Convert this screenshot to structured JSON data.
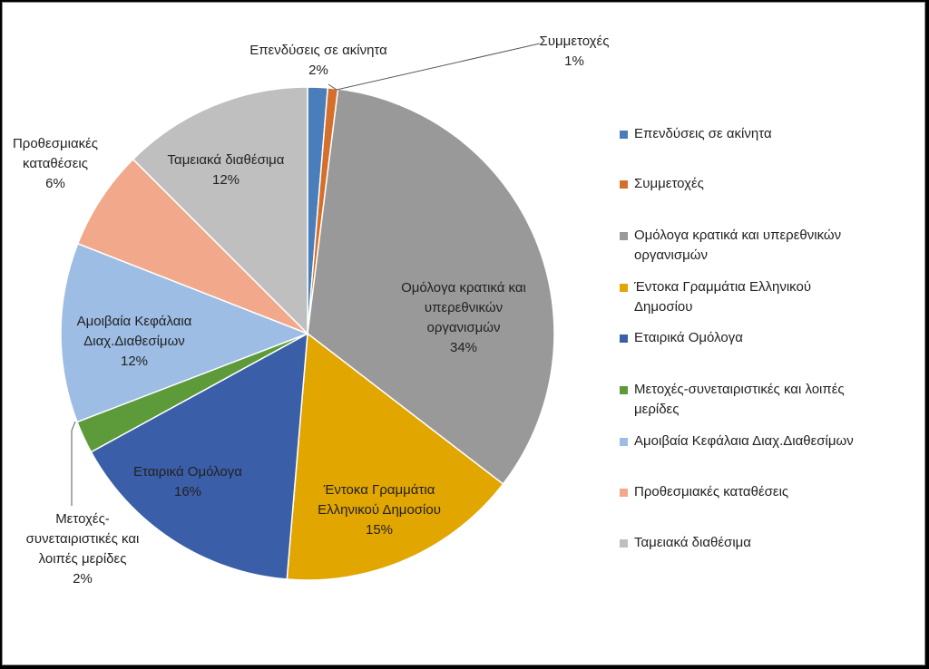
{
  "chart_data": {
    "type": "pie",
    "legend_position": "right",
    "slices": [
      {
        "name": "Επενδύσεις σε ακίνητα",
        "value": 2,
        "label": "2%",
        "color": "#4a7ebb"
      },
      {
        "name": "Συμμετοχές",
        "value": 1,
        "label": "1%",
        "color": "#d4702b"
      },
      {
        "name": "Ομόλογα κρατικά και υπερεθνικών οργανισμών",
        "value": 34,
        "label": "34%",
        "color": "#999999"
      },
      {
        "name": "Έντοκα Γραμμάτια Ελληνικού Δημοσίου",
        "value": 15,
        "label": "15%",
        "color": "#e2a600"
      },
      {
        "name": "Εταιρικά Ομόλογα",
        "value": 16,
        "label": "16%",
        "color": "#3a5ea8"
      },
      {
        "name": "Μετοχές-συνεταιριστικές και λοιπές μερίδες",
        "value": 2,
        "label": "2%",
        "color": "#5d9a3a"
      },
      {
        "name": "Αμοιβαία Κεφάλαια Διαχ.Διαθεσίμων",
        "value": 12,
        "label": "12%",
        "color": "#9dbde4"
      },
      {
        "name": "Προθεσμιακές καταθέσεις",
        "value": 6,
        "label": "6%",
        "color": "#f2a98b"
      },
      {
        "name": "Ταμειακά διαθέσιμα",
        "value": 12,
        "label": "12%",
        "color": "#bfbfbf"
      }
    ],
    "data_labels": [
      {
        "lines": [
          "Επενδύσεις σε ακίνητα"
        ],
        "pct": "2%"
      },
      {
        "lines": [
          "Συμμετοχές"
        ],
        "pct": "1%"
      },
      {
        "lines": [
          "Ομόλογα κρατικά και",
          "υπερεθνικών",
          "οργανισμών"
        ],
        "pct": "34%"
      },
      {
        "lines": [
          "Έντοκα Γραμμάτια",
          "Ελληνικού Δημοσίου"
        ],
        "pct": "15%"
      },
      {
        "lines": [
          "Εταιρικά Ομόλογα"
        ],
        "pct": "16%"
      },
      {
        "lines": [
          "Μετοχές-",
          "συνεταιριστικές και",
          "λοιπές μερίδες"
        ],
        "pct": "2%"
      },
      {
        "lines": [
          "Αμοιβαία Κεφάλαια",
          "Διαχ.Διαθεσίμων"
        ],
        "pct": "12%"
      },
      {
        "lines": [
          "Προθεσμιακές",
          "καταθέσεις"
        ],
        "pct": "6%"
      },
      {
        "lines": [
          "Ταμειακά διαθέσιμα"
        ],
        "pct": "12%"
      }
    ],
    "legend_entries": [
      [
        "Επενδύσεις σε ακίνητα"
      ],
      [
        "Συμμετοχές"
      ],
      [
        "Ομόλογα κρατικά και υπερεθνικών",
        "οργανισμών"
      ],
      [
        "Έντοκα Γραμμάτια Ελληνικού",
        "Δημοσίου"
      ],
      [
        "Εταιρικά Ομόλογα"
      ],
      [
        "Μετοχές-συνεταιριστικές και λοιπές",
        "μερίδες"
      ],
      [
        "Αμοιβαία Κεφάλαια Διαχ.Διαθεσίμων"
      ],
      [
        "Προθεσμιακές καταθέσεις"
      ],
      [
        "Ταμειακά διαθέσιμα"
      ]
    ]
  }
}
